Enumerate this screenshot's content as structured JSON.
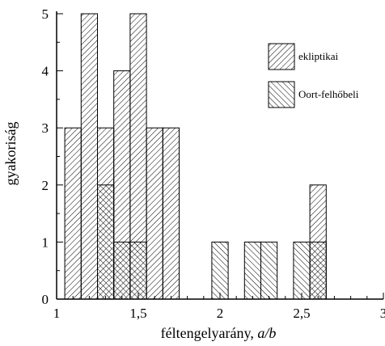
{
  "chart_data": {
    "type": "bar",
    "xlabel_text": "féltengelyarány, ",
    "xlabel_var": "a/b",
    "ylabel": "gyakoriság",
    "xlim": [
      1,
      3
    ],
    "ylim": [
      0,
      5
    ],
    "xticks": [
      {
        "value": 1,
        "label": "1"
      },
      {
        "value": 1.5,
        "label": "1,5"
      },
      {
        "value": 2,
        "label": "2"
      },
      {
        "value": 2.5,
        "label": "2,5"
      },
      {
        "value": 3,
        "label": "3"
      }
    ],
    "yticks": [
      {
        "value": 0,
        "label": "0"
      },
      {
        "value": 1,
        "label": "1"
      },
      {
        "value": 2,
        "label": "2"
      },
      {
        "value": 3,
        "label": "3"
      },
      {
        "value": 4,
        "label": "4"
      },
      {
        "value": 5,
        "label": "5"
      }
    ],
    "bin_width": 0.1,
    "legend_position": "top-right",
    "series": [
      {
        "name": "ekliptikai",
        "hatch": "forward-diagonal",
        "bins": [
          {
            "x0": 1.05,
            "count": 3
          },
          {
            "x0": 1.15,
            "count": 5
          },
          {
            "x0": 1.25,
            "count": 3
          },
          {
            "x0": 1.35,
            "count": 4
          },
          {
            "x0": 1.45,
            "count": 5
          },
          {
            "x0": 1.55,
            "count": 3
          },
          {
            "x0": 1.65,
            "count": 3
          },
          {
            "x0": 2.55,
            "count": 2
          }
        ]
      },
      {
        "name": "Oort-felhőbeli",
        "hatch": "back-diagonal",
        "bins": [
          {
            "x0": 1.25,
            "count": 2
          },
          {
            "x0": 1.35,
            "count": 1
          },
          {
            "x0": 1.45,
            "count": 1
          },
          {
            "x0": 1.95,
            "count": 1
          },
          {
            "x0": 2.15,
            "count": 1
          },
          {
            "x0": 2.25,
            "count": 1
          },
          {
            "x0": 2.45,
            "count": 1
          },
          {
            "x0": 2.55,
            "count": 1
          }
        ]
      }
    ]
  }
}
